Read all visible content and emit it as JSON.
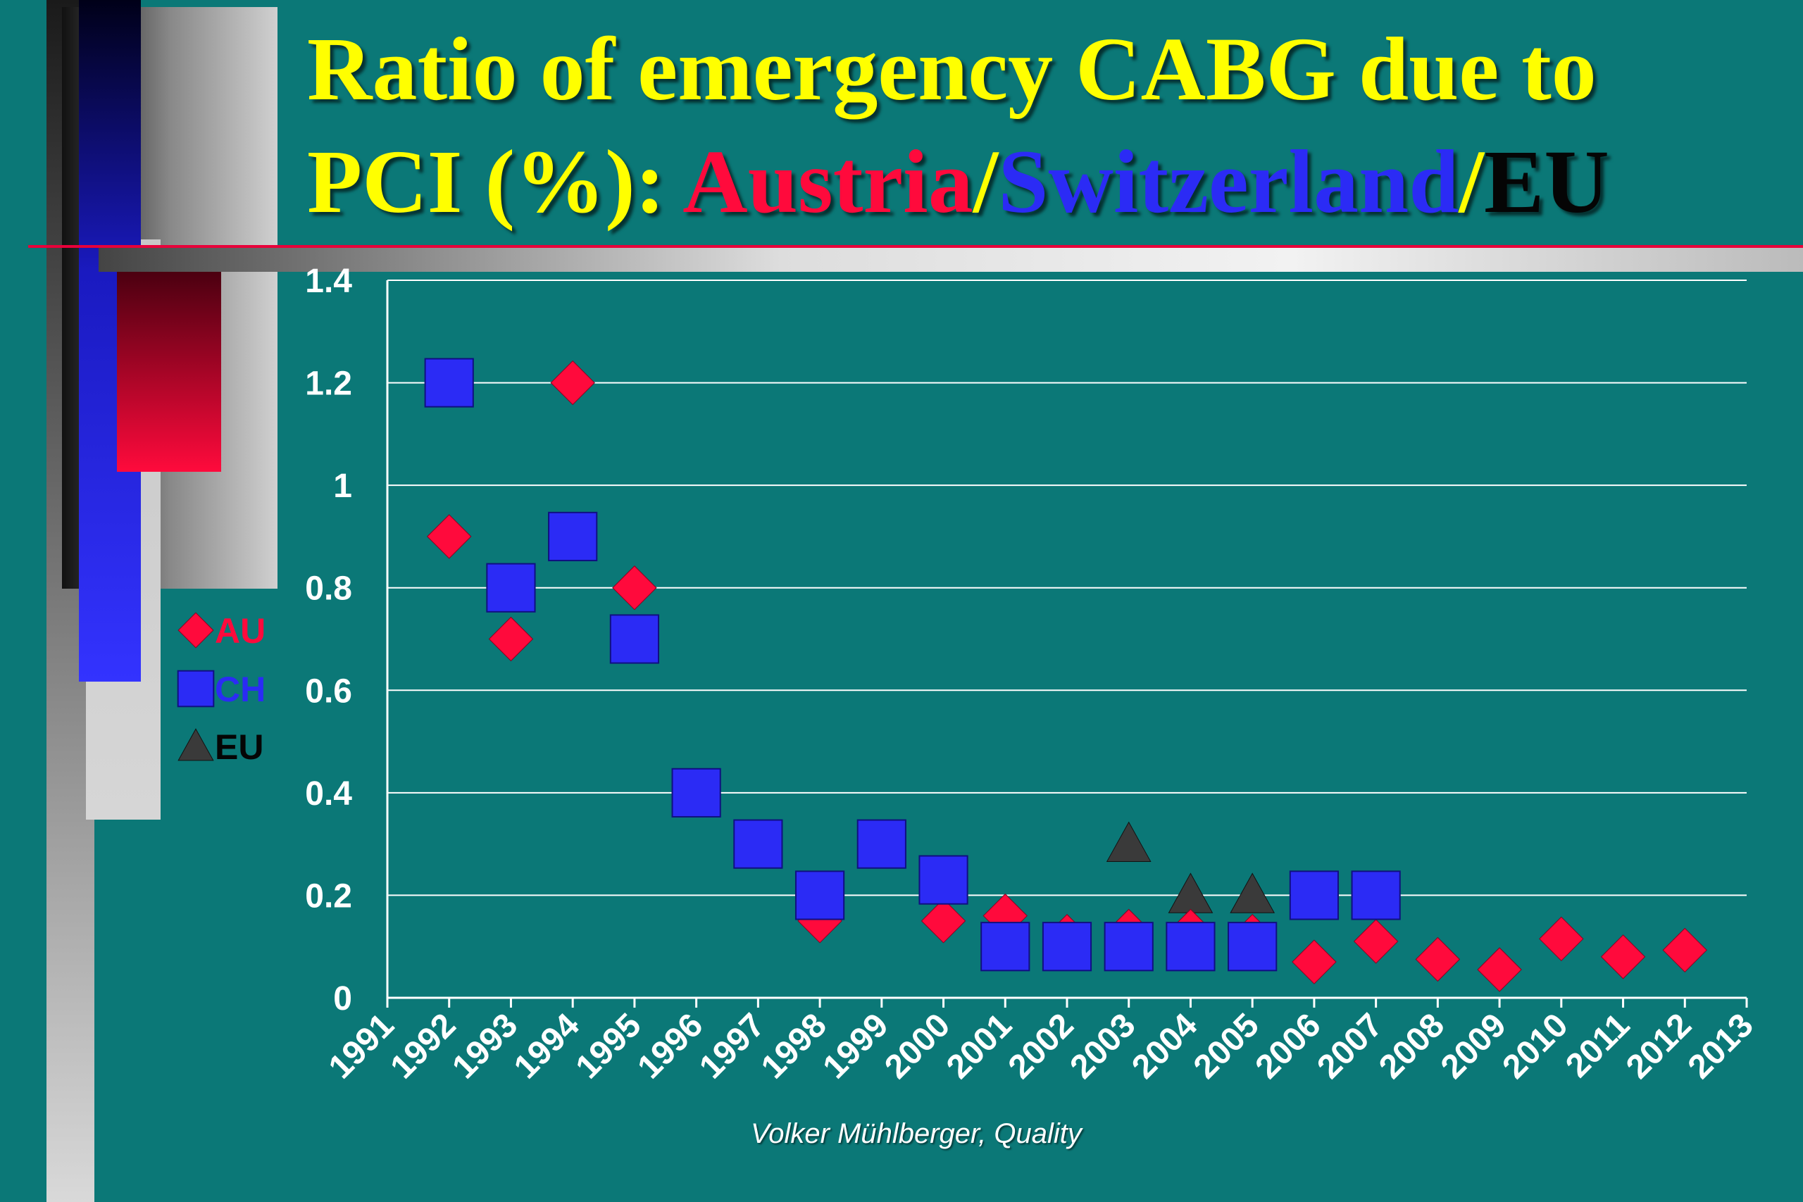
{
  "title": {
    "line1": "Ratio of emergency CABG due to",
    "prefix": "PCI (%): ",
    "part_au": "Austria",
    "sep1": "/",
    "part_ch": "Switzerland",
    "sep2": "/",
    "part_eu": "EU"
  },
  "footer": "Volker Mühlberger, Quality",
  "colors": {
    "background": "#0b7877",
    "title": "#ffff00",
    "au": "#ff0a3c",
    "ch": "#2b2bf5",
    "eu": "#3a3a3a",
    "grid": "#ffffff"
  },
  "chart_data": {
    "type": "scatter",
    "title": "Ratio of emergency CABG due to PCI (%): Austria/Switzerland/EU",
    "xlabel": "",
    "ylabel": "",
    "xlim": [
      1991,
      2013
    ],
    "ylim": [
      0,
      1.4
    ],
    "x_ticks": [
      "1991",
      "1992",
      "1993",
      "1994",
      "1995",
      "1996",
      "1997",
      "1998",
      "1999",
      "2000",
      "2001",
      "2002",
      "2003",
      "2004",
      "2005",
      "2006",
      "2007",
      "2008",
      "2009",
      "2010",
      "2011",
      "2012",
      "2013"
    ],
    "y_ticks": [
      "0",
      "0.2",
      "0.4",
      "0.6",
      "0.8",
      "1",
      "1.2",
      "1.4"
    ],
    "y_tick_values": [
      0,
      0.2,
      0.4,
      0.6,
      0.8,
      1.0,
      1.2,
      1.4
    ],
    "grid": true,
    "legend_position": "left",
    "series": [
      {
        "name": "AU",
        "marker": "diamond",
        "x": [
          1992,
          1993,
          1994,
          1995,
          1998,
          2000,
          2001,
          2002,
          2003,
          2004,
          2005,
          2006,
          2007,
          2008,
          2009,
          2010,
          2011,
          2012
        ],
        "y": [
          0.9,
          0.7,
          1.2,
          0.8,
          0.15,
          0.15,
          0.16,
          0.12,
          0.13,
          0.13,
          0.12,
          0.07,
          0.11,
          0.075,
          0.055,
          0.115,
          0.08,
          0.093
        ]
      },
      {
        "name": "CH",
        "marker": "square",
        "x": [
          1992,
          1993,
          1994,
          1995,
          1996,
          1997,
          1998,
          1999,
          2000,
          2001,
          2002,
          2003,
          2004,
          2005,
          2006,
          2007
        ],
        "y": [
          1.2,
          0.8,
          0.9,
          0.7,
          0.4,
          0.3,
          0.2,
          0.3,
          0.23,
          0.1,
          0.1,
          0.1,
          0.1,
          0.1,
          0.2,
          0.2
        ]
      },
      {
        "name": "EU",
        "marker": "triangle",
        "x": [
          2003,
          2004,
          2005
        ],
        "y": [
          0.3,
          0.2,
          0.2
        ]
      }
    ]
  }
}
